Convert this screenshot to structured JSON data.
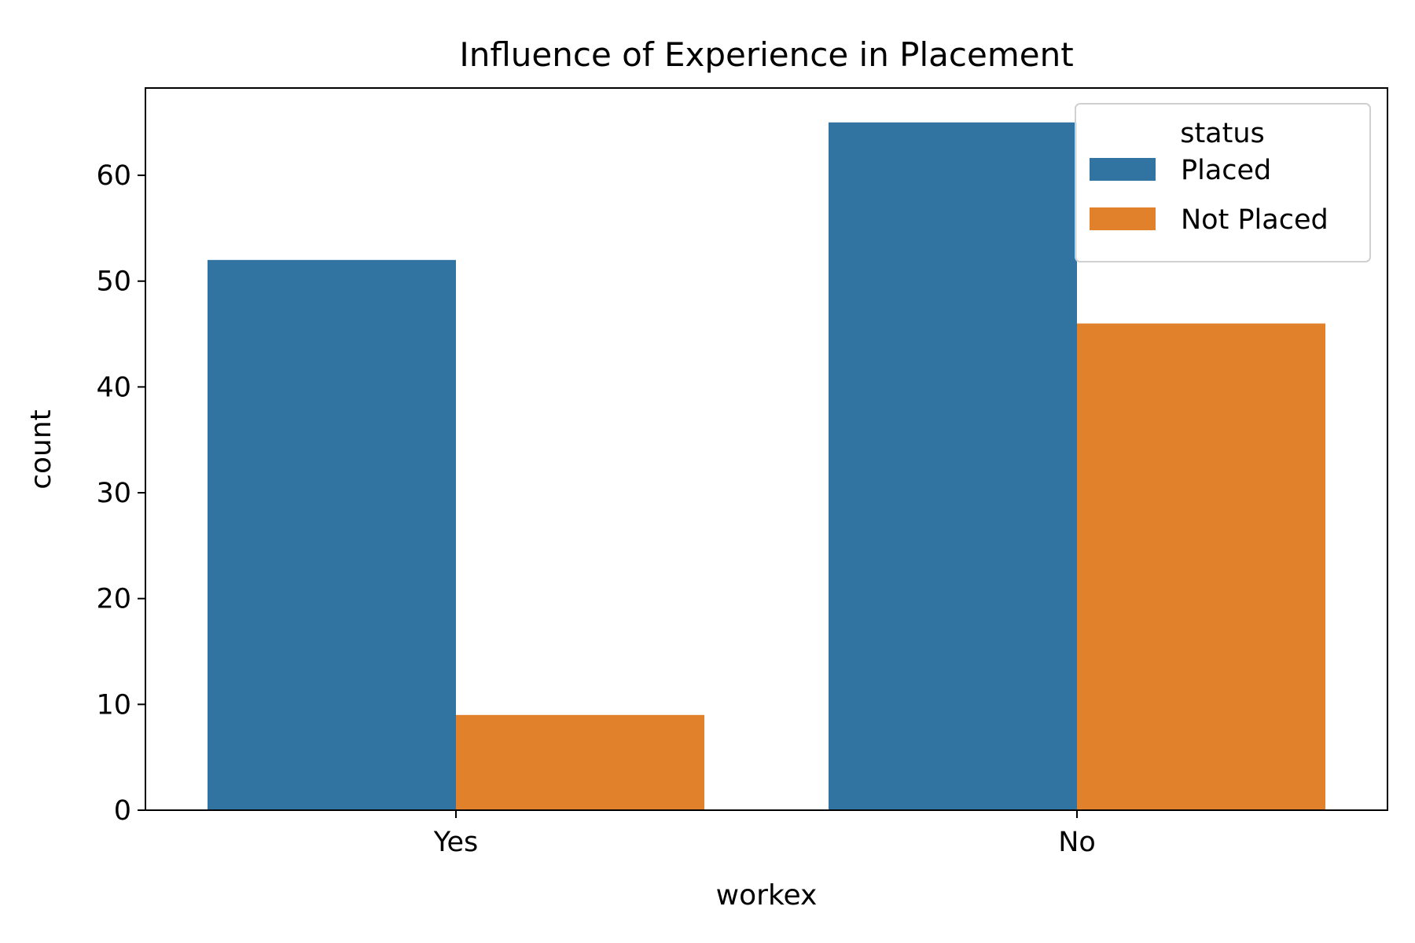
{
  "chart_data": {
    "type": "bar",
    "title": "Influence of Experience in Placement",
    "xlabel": "workex",
    "ylabel": "count",
    "categories": [
      "Yes",
      "No"
    ],
    "series": [
      {
        "name": "Placed",
        "values": [
          52,
          65
        ],
        "color": "#3274a1"
      },
      {
        "name": "Not Placed",
        "values": [
          9,
          46
        ],
        "color": "#e1812c"
      }
    ],
    "ylim": [
      0,
      68.25
    ],
    "yticks": [
      0,
      10,
      20,
      30,
      40,
      50,
      60
    ],
    "legend": {
      "title": "status",
      "placement": "top-right"
    },
    "grid": false
  }
}
